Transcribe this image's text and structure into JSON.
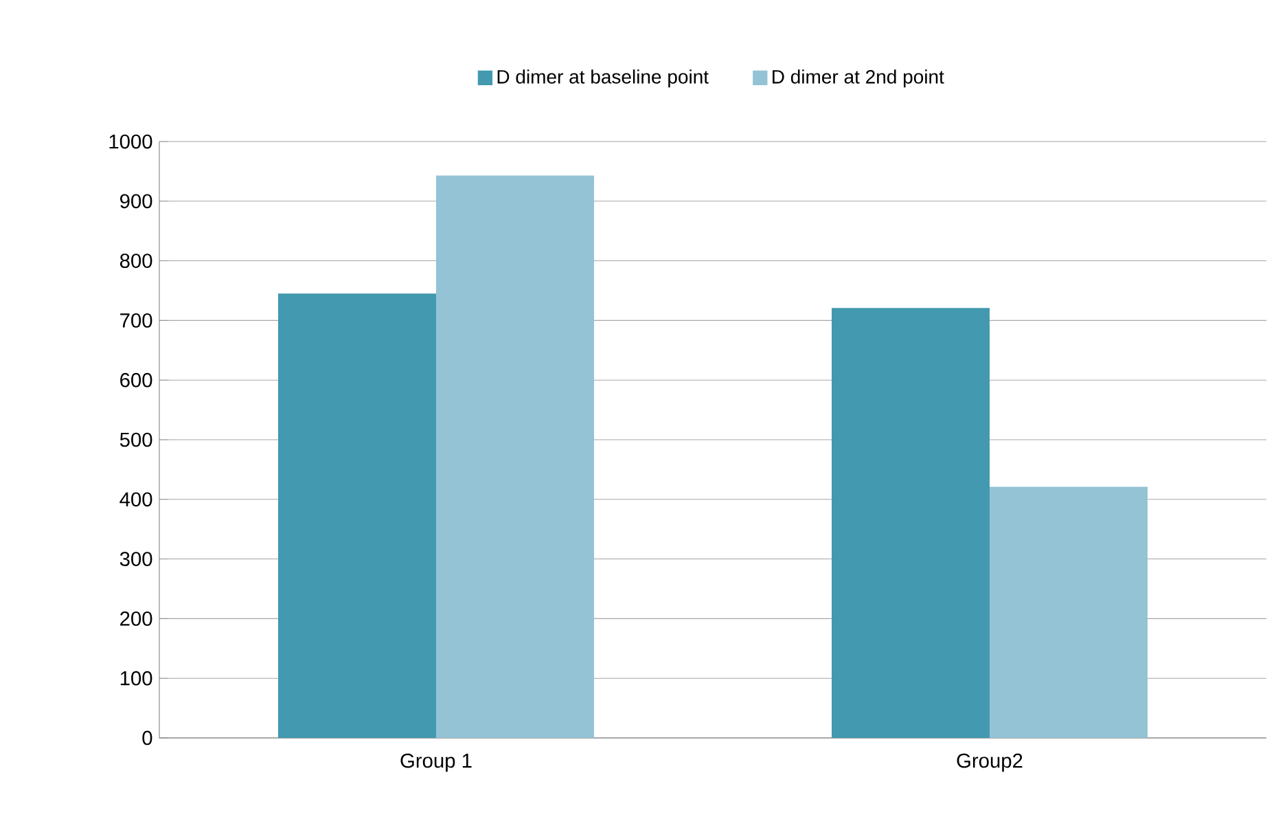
{
  "chart_data": {
    "type": "bar",
    "categories": [
      "Group 1",
      "Group2"
    ],
    "series": [
      {
        "name": "D dimer at baseline point",
        "color": "#4299b0",
        "values": [
          745,
          721
        ]
      },
      {
        "name": "D dimer at 2nd point",
        "color": "#93c3d4",
        "values": [
          943,
          421
        ]
      }
    ],
    "ylim": [
      0,
      1000
    ],
    "yticks": [
      0,
      100,
      200,
      300,
      400,
      500,
      600,
      700,
      800,
      900,
      1000
    ],
    "grid": "y",
    "legend": "top"
  }
}
